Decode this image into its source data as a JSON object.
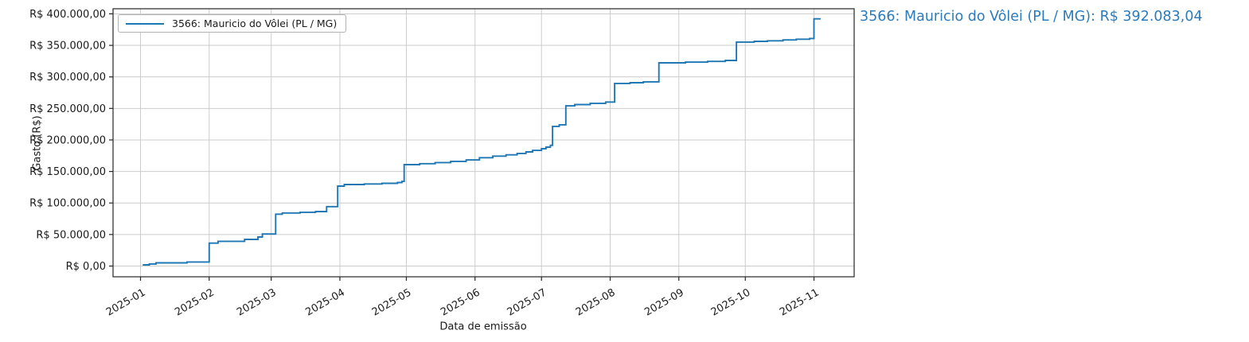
{
  "page": {
    "background": "#ffffff"
  },
  "legend": {
    "label": "3566: Mauricio do Vôlei (PL / MG)",
    "line_color": "#1f77b4"
  },
  "annotation": {
    "text": "3566: Mauricio do Vôlei (PL / MG): R$ 392.083,04",
    "color": "#2b7bba"
  },
  "chart_data": {
    "type": "line",
    "step": "post",
    "title": "",
    "xlabel": "Data de emissão",
    "ylabel": "Gasto (R$)",
    "grid": true,
    "legend_position": "upper left",
    "line_color": "#1f77b4",
    "grid_color": "#cccccc",
    "axis_color": "#262626",
    "x_ticks": [
      "2025-01",
      "2025-02",
      "2025-03",
      "2025-04",
      "2025-05",
      "2025-06",
      "2025-07",
      "2025-08",
      "2025-09",
      "2025-10",
      "2025-11"
    ],
    "y_ticks": [
      {
        "value": 0,
        "label": "R$ 0,00"
      },
      {
        "value": 50000,
        "label": "R$ 50.000,00"
      },
      {
        "value": 100000,
        "label": "R$ 100.000,00"
      },
      {
        "value": 150000,
        "label": "R$ 150.000,00"
      },
      {
        "value": 200000,
        "label": "R$ 200.000,00"
      },
      {
        "value": 250000,
        "label": "R$ 250.000,00"
      },
      {
        "value": 300000,
        "label": "R$ 300.000,00"
      },
      {
        "value": 350000,
        "label": "R$ 350.000,00"
      },
      {
        "value": 400000,
        "label": "R$ 400.000,00"
      }
    ],
    "ylim": [
      -17000,
      409000
    ],
    "series": [
      {
        "name": "3566: Mauricio do Vôlei (PL / MG)",
        "color": "#1f77b4",
        "final_value": 392083.04,
        "final_value_label": "R$ 392.083,04",
        "points": [
          [
            "2025-01-02",
            1900
          ],
          [
            "2025-01-05",
            3300
          ],
          [
            "2025-01-08",
            5100
          ],
          [
            "2025-01-22",
            6400
          ],
          [
            "2025-02-01",
            36300
          ],
          [
            "2025-02-05",
            39200
          ],
          [
            "2025-02-17",
            42300
          ],
          [
            "2025-02-23",
            46000
          ],
          [
            "2025-02-25",
            50800
          ],
          [
            "2025-03-03",
            82200
          ],
          [
            "2025-03-06",
            84200
          ],
          [
            "2025-03-14",
            85300
          ],
          [
            "2025-03-21",
            86400
          ],
          [
            "2025-03-26",
            94200
          ],
          [
            "2025-03-31",
            126800
          ],
          [
            "2025-04-03",
            129300
          ],
          [
            "2025-04-12",
            130200
          ],
          [
            "2025-04-20",
            131200
          ],
          [
            "2025-04-27",
            132500
          ],
          [
            "2025-04-29",
            134200
          ],
          [
            "2025-04-30",
            160800
          ],
          [
            "2025-05-07",
            162400
          ],
          [
            "2025-05-14",
            164100
          ],
          [
            "2025-05-21",
            166000
          ],
          [
            "2025-05-28",
            168300
          ],
          [
            "2025-06-03",
            171800
          ],
          [
            "2025-06-09",
            174300
          ],
          [
            "2025-06-15",
            176400
          ],
          [
            "2025-06-20",
            178600
          ],
          [
            "2025-06-24",
            181000
          ],
          [
            "2025-06-27",
            183400
          ],
          [
            "2025-07-01",
            186000
          ],
          [
            "2025-07-03",
            188600
          ],
          [
            "2025-07-05",
            191500
          ],
          [
            "2025-07-06",
            221500
          ],
          [
            "2025-07-09",
            224000
          ],
          [
            "2025-07-12",
            254000
          ],
          [
            "2025-07-16",
            256100
          ],
          [
            "2025-07-23",
            258100
          ],
          [
            "2025-07-30",
            260100
          ],
          [
            "2025-08-03",
            289600
          ],
          [
            "2025-08-10",
            290700
          ],
          [
            "2025-08-16",
            292100
          ],
          [
            "2025-08-23",
            322300
          ],
          [
            "2025-09-04",
            323400
          ],
          [
            "2025-09-14",
            324600
          ],
          [
            "2025-09-22",
            326100
          ],
          [
            "2025-09-27",
            355200
          ],
          [
            "2025-10-05",
            356300
          ],
          [
            "2025-10-11",
            357300
          ],
          [
            "2025-10-18",
            358600
          ],
          [
            "2025-10-24",
            359700
          ],
          [
            "2025-10-30",
            360900
          ],
          [
            "2025-11-01",
            392083.04
          ],
          [
            "2025-11-04",
            392083.04
          ]
        ]
      }
    ]
  }
}
